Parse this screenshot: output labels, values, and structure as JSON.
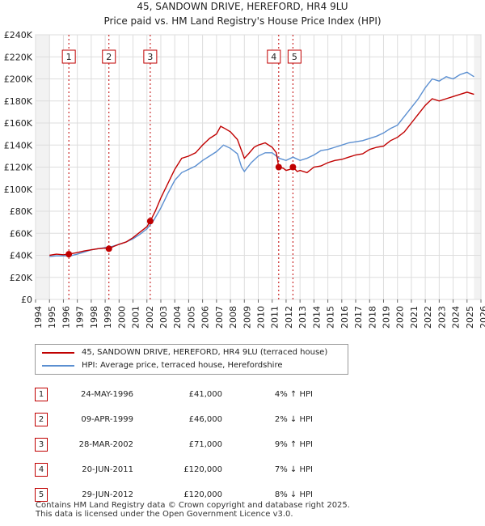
{
  "chart_data": {
    "type": "line",
    "title": "45, SANDOWN DRIVE, HEREFORD, HR4 9LU",
    "subtitle": "Price paid vs. HM Land Registry's House Price Index (HPI)",
    "xlim": [
      1994,
      2026
    ],
    "ylim": [
      0,
      240000
    ],
    "y_ticks": [
      0,
      20000,
      40000,
      60000,
      80000,
      100000,
      120000,
      140000,
      160000,
      180000,
      200000,
      220000,
      240000
    ],
    "y_tick_labels": [
      "£0",
      "£20K",
      "£40K",
      "£60K",
      "£80K",
      "£100K",
      "£120K",
      "£140K",
      "£160K",
      "£180K",
      "£200K",
      "£220K",
      "£240K"
    ],
    "x_ticks": [
      1994,
      1995,
      1996,
      1997,
      1998,
      1999,
      2000,
      2001,
      2002,
      2003,
      2004,
      2005,
      2006,
      2007,
      2008,
      2009,
      2010,
      2011,
      2012,
      2013,
      2014,
      2015,
      2016,
      2017,
      2018,
      2019,
      2020,
      2021,
      2022,
      2023,
      2024,
      2025,
      2026
    ],
    "data_start": 1995.0,
    "data_end": 2025.5,
    "series": [
      {
        "name": "45, SANDOWN DRIVE, HEREFORD, HR4 9LU (terraced house)",
        "color": "#c00000",
        "points": [
          [
            1995.0,
            40000
          ],
          [
            1995.5,
            41000
          ],
          [
            1996.0,
            40500
          ],
          [
            1996.39,
            41000
          ],
          [
            1997.0,
            42500
          ],
          [
            1997.5,
            44000
          ],
          [
            1998.0,
            45000
          ],
          [
            1998.5,
            46000
          ],
          [
            1999.0,
            46500
          ],
          [
            1999.27,
            46000
          ],
          [
            1999.6,
            48000
          ],
          [
            2000.0,
            50000
          ],
          [
            2000.5,
            52000
          ],
          [
            2001.0,
            56000
          ],
          [
            2001.5,
            61000
          ],
          [
            2002.0,
            66000
          ],
          [
            2002.24,
            71000
          ],
          [
            2002.6,
            80000
          ],
          [
            2003.0,
            92000
          ],
          [
            2003.5,
            105000
          ],
          [
            2004.0,
            118000
          ],
          [
            2004.5,
            128000
          ],
          [
            2005.0,
            130000
          ],
          [
            2005.5,
            133000
          ],
          [
            2006.0,
            140000
          ],
          [
            2006.5,
            146000
          ],
          [
            2007.0,
            150000
          ],
          [
            2007.3,
            157000
          ],
          [
            2007.6,
            155000
          ],
          [
            2008.0,
            152000
          ],
          [
            2008.5,
            145000
          ],
          [
            2008.8,
            135000
          ],
          [
            2009.0,
            128000
          ],
          [
            2009.3,
            132000
          ],
          [
            2009.7,
            138000
          ],
          [
            2010.0,
            140000
          ],
          [
            2010.5,
            142000
          ],
          [
            2011.0,
            138000
          ],
          [
            2011.3,
            133000
          ],
          [
            2011.47,
            120000
          ],
          [
            2011.8,
            119000
          ],
          [
            2012.0,
            117000
          ],
          [
            2012.3,
            118000
          ],
          [
            2012.49,
            120000
          ],
          [
            2012.8,
            116000
          ],
          [
            2013.0,
            117000
          ],
          [
            2013.5,
            115000
          ],
          [
            2014.0,
            120000
          ],
          [
            2014.5,
            121000
          ],
          [
            2015.0,
            124000
          ],
          [
            2015.5,
            126000
          ],
          [
            2016.0,
            127000
          ],
          [
            2016.5,
            129000
          ],
          [
            2017.0,
            131000
          ],
          [
            2017.5,
            132000
          ],
          [
            2018.0,
            136000
          ],
          [
            2018.5,
            138000
          ],
          [
            2019.0,
            139000
          ],
          [
            2019.5,
            144000
          ],
          [
            2020.0,
            147000
          ],
          [
            2020.5,
            152000
          ],
          [
            2021.0,
            160000
          ],
          [
            2021.5,
            168000
          ],
          [
            2022.0,
            176000
          ],
          [
            2022.5,
            182000
          ],
          [
            2023.0,
            180000
          ],
          [
            2023.5,
            182000
          ],
          [
            2024.0,
            184000
          ],
          [
            2024.5,
            186000
          ],
          [
            2025.0,
            188000
          ],
          [
            2025.5,
            186000
          ]
        ]
      },
      {
        "name": "HPI: Average price, terraced house, Herefordshire",
        "color": "#5b8fd1",
        "points": [
          [
            1995.0,
            39000
          ],
          [
            1995.5,
            39500
          ],
          [
            1996.0,
            39500
          ],
          [
            1996.5,
            39500
          ],
          [
            1997.0,
            41000
          ],
          [
            1997.5,
            43000
          ],
          [
            1998.0,
            45000
          ],
          [
            1998.5,
            46000
          ],
          [
            1999.0,
            47000
          ],
          [
            1999.5,
            48000
          ],
          [
            2000.0,
            50000
          ],
          [
            2000.5,
            52000
          ],
          [
            2001.0,
            55000
          ],
          [
            2001.5,
            59000
          ],
          [
            2002.0,
            64000
          ],
          [
            2002.5,
            72000
          ],
          [
            2003.0,
            83000
          ],
          [
            2003.5,
            96000
          ],
          [
            2004.0,
            108000
          ],
          [
            2004.5,
            115000
          ],
          [
            2005.0,
            118000
          ],
          [
            2005.5,
            121000
          ],
          [
            2006.0,
            126000
          ],
          [
            2006.5,
            130000
          ],
          [
            2007.0,
            134000
          ],
          [
            2007.5,
            140000
          ],
          [
            2008.0,
            137000
          ],
          [
            2008.5,
            132000
          ],
          [
            2008.8,
            120000
          ],
          [
            2009.0,
            116000
          ],
          [
            2009.5,
            124000
          ],
          [
            2010.0,
            130000
          ],
          [
            2010.5,
            133000
          ],
          [
            2011.0,
            133000
          ],
          [
            2011.5,
            128000
          ],
          [
            2012.0,
            126000
          ],
          [
            2012.5,
            129000
          ],
          [
            2013.0,
            126000
          ],
          [
            2013.5,
            128000
          ],
          [
            2014.0,
            131000
          ],
          [
            2014.5,
            135000
          ],
          [
            2015.0,
            136000
          ],
          [
            2015.5,
            138000
          ],
          [
            2016.0,
            140000
          ],
          [
            2016.5,
            142000
          ],
          [
            2017.0,
            143000
          ],
          [
            2017.5,
            144000
          ],
          [
            2018.0,
            146000
          ],
          [
            2018.5,
            148000
          ],
          [
            2019.0,
            151000
          ],
          [
            2019.5,
            155000
          ],
          [
            2020.0,
            158000
          ],
          [
            2020.5,
            166000
          ],
          [
            2021.0,
            174000
          ],
          [
            2021.5,
            182000
          ],
          [
            2022.0,
            192000
          ],
          [
            2022.5,
            200000
          ],
          [
            2023.0,
            198000
          ],
          [
            2023.5,
            202000
          ],
          [
            2024.0,
            200000
          ],
          [
            2024.5,
            204000
          ],
          [
            2025.0,
            206000
          ],
          [
            2025.5,
            202000
          ]
        ]
      }
    ],
    "sales": [
      {
        "id": "1",
        "x": 1996.39,
        "price": 41000,
        "date": "24-MAY-1996",
        "price_label": "£41,000",
        "hpi": "4% ↑ HPI"
      },
      {
        "id": "2",
        "x": 1999.27,
        "price": 46000,
        "date": "09-APR-1999",
        "price_label": "£46,000",
        "hpi": "2% ↓ HPI"
      },
      {
        "id": "3",
        "x": 2002.24,
        "price": 71000,
        "date": "28-MAR-2002",
        "price_label": "£71,000",
        "hpi": "9% ↑ HPI"
      },
      {
        "id": "4",
        "x": 2011.47,
        "price": 120000,
        "date": "20-JUN-2011",
        "price_label": "£120,000",
        "hpi": "7% ↓ HPI"
      },
      {
        "id": "5",
        "x": 2012.49,
        "price": 120000,
        "date": "29-JUN-2012",
        "price_label": "£120,000",
        "hpi": "8% ↓ HPI"
      }
    ]
  },
  "legend": {
    "property_label": "45, SANDOWN DRIVE, HEREFORD, HR4 9LU (terraced house)",
    "hpi_label": "HPI: Average price, terraced house, Herefordshire"
  },
  "footer": {
    "line1": "Contains HM Land Registry data © Crown copyright and database right 2025.",
    "line2": "This data is licensed under the Open Government Licence v3.0."
  },
  "colors": {
    "property": "#c00000",
    "hpi": "#5b8fd1",
    "grid": "#dddddd",
    "shade": "#e8eef7"
  }
}
